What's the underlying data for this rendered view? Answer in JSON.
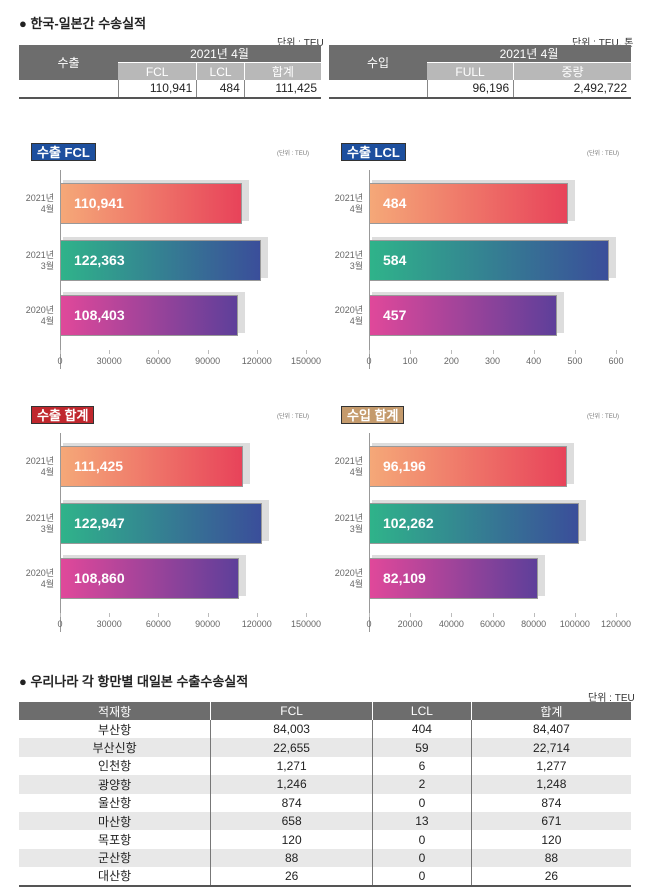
{
  "top": {
    "title": "● 한국-일본간 수송실적",
    "export": {
      "unit": "단위 : TEU",
      "label": "수출",
      "period": "2021년 4월",
      "headers": [
        "FCL",
        "LCL",
        "합계"
      ],
      "values": [
        "110,941",
        "484",
        "111,425"
      ]
    },
    "import": {
      "unit": "단위 : TEU, 톤",
      "label": "수입",
      "period": "2021년 4월",
      "headers": [
        "FULL",
        "중량"
      ],
      "values": [
        "96,196",
        "2,492,722"
      ]
    }
  },
  "chart_data": [
    {
      "type": "bar",
      "orientation": "horizontal",
      "title": "수출 FCL",
      "unit": "(단위 : TEU)",
      "badge_color": "#1d4f9e",
      "categories": [
        [
          "2021년",
          "4월"
        ],
        [
          "2021년",
          "3월"
        ],
        [
          "2020년",
          "4월"
        ]
      ],
      "values": [
        110941,
        122363,
        108403
      ],
      "labels": [
        "110,941",
        "122,363",
        "108,403"
      ],
      "xlim": [
        0,
        150000
      ],
      "xticks": [
        "0",
        "30000",
        "60000",
        "90000",
        "120000",
        "150000"
      ]
    },
    {
      "type": "bar",
      "orientation": "horizontal",
      "title": "수출 LCL",
      "unit": "(단위 : TEU)",
      "badge_color": "#1d4f9e",
      "categories": [
        [
          "2021년",
          "4월"
        ],
        [
          "2021년",
          "3월"
        ],
        [
          "2020년",
          "4월"
        ]
      ],
      "values": [
        484,
        584,
        457
      ],
      "labels": [
        "484",
        "584",
        "457"
      ],
      "xlim": [
        0,
        600
      ],
      "xticks": [
        "0",
        "100",
        "200",
        "300",
        "400",
        "500",
        "600"
      ]
    },
    {
      "type": "bar",
      "orientation": "horizontal",
      "title": "수출 합계",
      "unit": "(단위 : TEU)",
      "badge_color": "#c0272d",
      "categories": [
        [
          "2021년",
          "4월"
        ],
        [
          "2021년",
          "3월"
        ],
        [
          "2020년",
          "4월"
        ]
      ],
      "values": [
        111425,
        122947,
        108860
      ],
      "labels": [
        "111,425",
        "122,947",
        "108,860"
      ],
      "xlim": [
        0,
        150000
      ],
      "xticks": [
        "0",
        "30000",
        "60000",
        "90000",
        "120000",
        "150000"
      ]
    },
    {
      "type": "bar",
      "orientation": "horizontal",
      "title": "수입 합계",
      "unit": "(단위 : TEU)",
      "badge_color": "#c49a6c",
      "categories": [
        [
          "2021년",
          "4월"
        ],
        [
          "2021년",
          "3월"
        ],
        [
          "2020년",
          "4월"
        ]
      ],
      "values": [
        96196,
        102262,
        82109
      ],
      "labels": [
        "96,196",
        "102,262",
        "82,109"
      ],
      "xlim": [
        0,
        120000
      ],
      "xticks": [
        "0",
        "20000",
        "40000",
        "60000",
        "80000",
        "100000",
        "120000"
      ]
    }
  ],
  "bar_gradients": [
    [
      "#f5a878",
      "#e8435a"
    ],
    [
      "#2fb38a",
      "#3a4e9a"
    ],
    [
      "#e0489a",
      "#5e3f9a"
    ]
  ],
  "ports": {
    "title": "● 우리나라 각 항만별 대일본 수출수송실적",
    "unit": "단위 : TEU",
    "headers": [
      "적재항",
      "FCL",
      "LCL",
      "합계"
    ],
    "rows": [
      [
        "부산항",
        "84,003",
        "404",
        "84,407"
      ],
      [
        "부산신항",
        "22,655",
        "59",
        "22,714"
      ],
      [
        "인천항",
        "1,271",
        "6",
        "1,277"
      ],
      [
        "광양항",
        "1,246",
        "2",
        "1,248"
      ],
      [
        "울산항",
        "874",
        "0",
        "874"
      ],
      [
        "마산항",
        "658",
        "13",
        "671"
      ],
      [
        "목포항",
        "120",
        "0",
        "120"
      ],
      [
        "군산항",
        "88",
        "0",
        "88"
      ],
      [
        "대산항",
        "26",
        "0",
        "26"
      ]
    ]
  }
}
